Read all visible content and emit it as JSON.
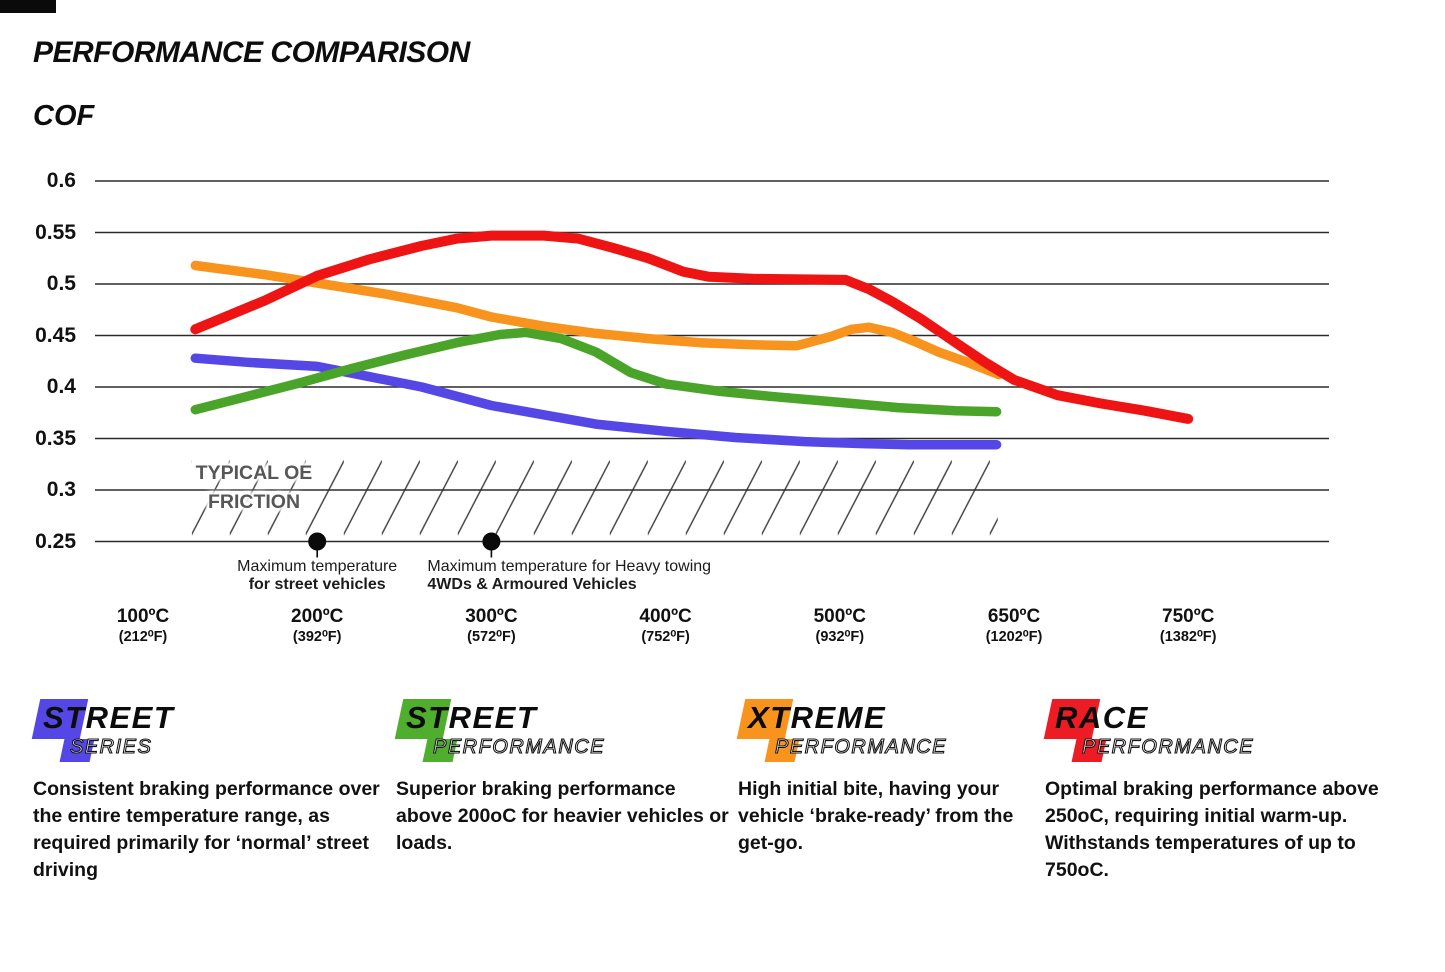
{
  "page": {
    "title": "PERFORMANCE COMPARISON",
    "ylabel": "COF"
  },
  "chart_data": {
    "type": "line",
    "title": "PERFORMANCE COMPARISON",
    "ylabel": "COF",
    "xlabel": "",
    "ylim": [
      0.25,
      0.6
    ],
    "grid": true,
    "y_ticks": [
      "0.6",
      "0.55",
      "0.5",
      "0.45",
      "0.4",
      "0.35",
      "0.3",
      "0.25"
    ],
    "y_tick_values": [
      0.6,
      0.55,
      0.5,
      0.45,
      0.4,
      0.35,
      0.3,
      0.25
    ],
    "x_ticks": [
      {
        "temp": 100,
        "label_c": "100ºC",
        "label_f": "(212⁰F)"
      },
      {
        "temp": 200,
        "label_c": "200ºC",
        "label_f": "(392⁰F)"
      },
      {
        "temp": 300,
        "label_c": "300ºC",
        "label_f": "(572⁰F)"
      },
      {
        "temp": 400,
        "label_c": "400ºC",
        "label_f": "(752⁰F)"
      },
      {
        "temp": 500,
        "label_c": "500ºC",
        "label_f": "(932⁰F)"
      },
      {
        "temp": 650,
        "label_c": "650ºC",
        "label_f": "(1202⁰F)"
      },
      {
        "temp": 750,
        "label_c": "750ºC",
        "label_f": "(1382⁰F)"
      }
    ],
    "series": [
      {
        "name": "Street Series",
        "color": "#5447e5",
        "width": 9.5,
        "points": [
          [
            130,
            0.428
          ],
          [
            160,
            0.424
          ],
          [
            200,
            0.42
          ],
          [
            230,
            0.41
          ],
          [
            260,
            0.4
          ],
          [
            300,
            0.382
          ],
          [
            330,
            0.373
          ],
          [
            360,
            0.364
          ],
          [
            400,
            0.357
          ],
          [
            440,
            0.351
          ],
          [
            480,
            0.347
          ],
          [
            520,
            0.345
          ],
          [
            560,
            0.344
          ],
          [
            635,
            0.344
          ]
        ]
      },
      {
        "name": "Street Performance",
        "color": "#4ba42a",
        "width": 9.5,
        "points": [
          [
            130,
            0.378
          ],
          [
            160,
            0.391
          ],
          [
            190,
            0.404
          ],
          [
            220,
            0.418
          ],
          [
            250,
            0.431
          ],
          [
            280,
            0.443
          ],
          [
            305,
            0.451
          ],
          [
            320,
            0.453
          ],
          [
            340,
            0.447
          ],
          [
            360,
            0.434
          ],
          [
            380,
            0.414
          ],
          [
            400,
            0.403
          ],
          [
            430,
            0.396
          ],
          [
            460,
            0.391
          ],
          [
            500,
            0.385
          ],
          [
            550,
            0.38
          ],
          [
            600,
            0.377
          ],
          [
            635,
            0.376
          ]
        ]
      },
      {
        "name": "Xtreme Performance",
        "color": "#f8941d",
        "width": 9.5,
        "points": [
          [
            130,
            0.518
          ],
          [
            170,
            0.509
          ],
          [
            200,
            0.501
          ],
          [
            240,
            0.49
          ],
          [
            280,
            0.477
          ],
          [
            300,
            0.468
          ],
          [
            330,
            0.459
          ],
          [
            360,
            0.452
          ],
          [
            390,
            0.447
          ],
          [
            420,
            0.443
          ],
          [
            450,
            0.441
          ],
          [
            475,
            0.44
          ],
          [
            495,
            0.449
          ],
          [
            510,
            0.456
          ],
          [
            525,
            0.458
          ],
          [
            545,
            0.453
          ],
          [
            565,
            0.444
          ],
          [
            585,
            0.434
          ],
          [
            610,
            0.424
          ],
          [
            637,
            0.412
          ]
        ]
      },
      {
        "name": "Race Performance",
        "color": "#ee1414",
        "width": 10,
        "points": [
          [
            130,
            0.456
          ],
          [
            150,
            0.47
          ],
          [
            170,
            0.484
          ],
          [
            200,
            0.508
          ],
          [
            230,
            0.524
          ],
          [
            260,
            0.537
          ],
          [
            280,
            0.544
          ],
          [
            300,
            0.547
          ],
          [
            330,
            0.547
          ],
          [
            350,
            0.544
          ],
          [
            370,
            0.535
          ],
          [
            390,
            0.525
          ],
          [
            410,
            0.512
          ],
          [
            425,
            0.507
          ],
          [
            450,
            0.505
          ],
          [
            505,
            0.504
          ],
          [
            525,
            0.495
          ],
          [
            545,
            0.483
          ],
          [
            570,
            0.466
          ],
          [
            600,
            0.443
          ],
          [
            625,
            0.424
          ],
          [
            650,
            0.407
          ],
          [
            675,
            0.392
          ],
          [
            700,
            0.384
          ],
          [
            725,
            0.377
          ],
          [
            750,
            0.369
          ]
        ]
      }
    ],
    "oe_band": {
      "line1": "TYPICAL OE",
      "line2": "FRICTION",
      "t_start": 128,
      "t_end": 636,
      "v_top": 0.35,
      "v_bottom": 0.25,
      "hatch_color": "#3a3a3a",
      "label_color": "#575757"
    },
    "markers": [
      {
        "temp": 200,
        "line1": "Maximum temperature",
        "line2": "for street vehicles",
        "align": "center"
      },
      {
        "temp": 300,
        "line1": "Maximum temperature for Heavy towing",
        "line2": "4WDs & Armoured Vehicles",
        "align": "left"
      }
    ],
    "gridline_color": "#2b2b2b"
  },
  "legend": {
    "items": [
      {
        "title": "STREET",
        "subtitle": "SERIES",
        "color": "#5447e5",
        "desc": "Consistent braking performance over the entire temperature range, as required primarily for ‘normal’ street driving"
      },
      {
        "title": "STREET",
        "subtitle": "PERFORMANCE",
        "color": "#4fae2e",
        "desc": "Superior braking performance above 200oC for heavier vehicles or loads."
      },
      {
        "title": "XTREME",
        "subtitle": "PERFORMANCE",
        "color": "#f8941e",
        "desc": "High initial bite, having your vehicle ‘brake-ready’ from the get-go."
      },
      {
        "title": "RACE",
        "subtitle": "PERFORMANCE",
        "color": "#ed1c24",
        "desc": "Optimal braking performance above 250oC, requiring initial warm-up. Withstands temperatures of up to 750oC."
      }
    ]
  }
}
